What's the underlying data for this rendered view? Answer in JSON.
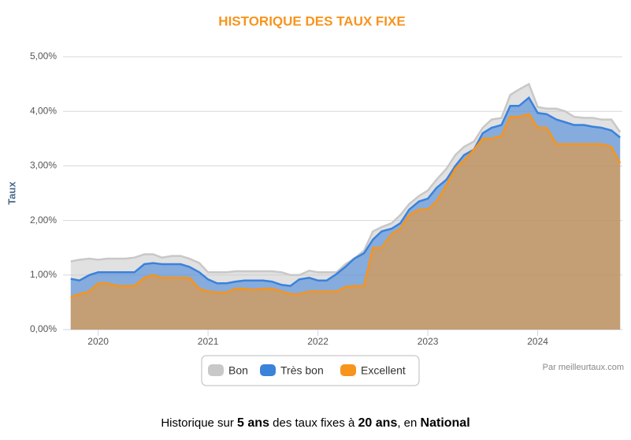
{
  "chart_data": {
    "type": "area",
    "title": "HISTORIQUE DES TAUX FIXE",
    "y_label": "Taux",
    "credits": "Par meilleurtaux.com",
    "x": [
      2019.75,
      2019.83,
      2019.92,
      2020.0,
      2020.08,
      2020.17,
      2020.25,
      2020.33,
      2020.42,
      2020.5,
      2020.58,
      2020.67,
      2020.75,
      2020.83,
      2020.92,
      2021.0,
      2021.08,
      2021.17,
      2021.25,
      2021.33,
      2021.42,
      2021.5,
      2021.58,
      2021.67,
      2021.75,
      2021.83,
      2021.92,
      2022.0,
      2022.08,
      2022.17,
      2022.25,
      2022.33,
      2022.42,
      2022.5,
      2022.58,
      2022.67,
      2022.75,
      2022.83,
      2022.92,
      2023.0,
      2023.08,
      2023.17,
      2023.25,
      2023.33,
      2023.42,
      2023.5,
      2023.58,
      2023.67,
      2023.75,
      2023.83,
      2023.92,
      2024.0,
      2024.08,
      2024.17,
      2024.25,
      2024.33,
      2024.42,
      2024.5,
      2024.58,
      2024.67,
      2024.75
    ],
    "series": [
      {
        "name": "Bon",
        "color": "#c8c8c8",
        "values": [
          1.25,
          1.28,
          1.3,
          1.28,
          1.3,
          1.3,
          1.3,
          1.32,
          1.38,
          1.38,
          1.32,
          1.35,
          1.35,
          1.3,
          1.22,
          1.05,
          1.05,
          1.05,
          1.07,
          1.07,
          1.07,
          1.07,
          1.07,
          1.05,
          1.0,
          1.0,
          1.08,
          1.05,
          1.05,
          1.05,
          1.2,
          1.3,
          1.45,
          1.8,
          1.88,
          1.95,
          2.1,
          2.3,
          2.45,
          2.55,
          2.75,
          2.95,
          3.2,
          3.35,
          3.45,
          3.7,
          3.85,
          3.88,
          4.3,
          4.4,
          4.5,
          4.08,
          4.05,
          4.05,
          4.0,
          3.9,
          3.88,
          3.88,
          3.85,
          3.85,
          3.62
        ]
      },
      {
        "name": "Très bon",
        "color": "#3b82db",
        "values": [
          0.93,
          0.9,
          1.0,
          1.05,
          1.05,
          1.05,
          1.05,
          1.05,
          1.2,
          1.22,
          1.2,
          1.2,
          1.2,
          1.15,
          1.05,
          0.92,
          0.85,
          0.85,
          0.88,
          0.9,
          0.9,
          0.9,
          0.88,
          0.82,
          0.8,
          0.92,
          0.95,
          0.9,
          0.9,
          1.02,
          1.15,
          1.3,
          1.4,
          1.65,
          1.8,
          1.85,
          1.95,
          2.2,
          2.35,
          2.4,
          2.6,
          2.75,
          3.0,
          3.2,
          3.3,
          3.6,
          3.7,
          3.75,
          4.1,
          4.1,
          4.25,
          3.97,
          3.95,
          3.85,
          3.8,
          3.75,
          3.75,
          3.72,
          3.7,
          3.65,
          3.52
        ]
      },
      {
        "name": "Excellent",
        "color": "#f7941d",
        "values": [
          0.6,
          0.65,
          0.7,
          0.85,
          0.85,
          0.8,
          0.8,
          0.8,
          0.95,
          1.0,
          0.95,
          0.95,
          0.95,
          0.95,
          0.75,
          0.7,
          0.68,
          0.68,
          0.75,
          0.75,
          0.73,
          0.75,
          0.75,
          0.7,
          0.65,
          0.65,
          0.7,
          0.7,
          0.7,
          0.7,
          0.78,
          0.8,
          0.8,
          1.5,
          1.5,
          1.75,
          1.85,
          2.1,
          2.2,
          2.2,
          2.35,
          2.65,
          2.95,
          3.1,
          3.3,
          3.5,
          3.5,
          3.55,
          3.9,
          3.9,
          3.95,
          3.7,
          3.7,
          3.4,
          3.4,
          3.4,
          3.4,
          3.4,
          3.4,
          3.35,
          3.05
        ]
      }
    ],
    "xlim": [
      2019.68,
      2024.77
    ],
    "xticks": [
      2020,
      2021,
      2022,
      2023,
      2024
    ],
    "ylim": [
      0,
      5
    ],
    "yticks": [
      {
        "value": 0,
        "label": "0,00%"
      },
      {
        "value": 1,
        "label": "1,00%"
      },
      {
        "value": 2,
        "label": "2,00%"
      },
      {
        "value": 3,
        "label": "3,00%"
      },
      {
        "value": 4,
        "label": "4,00%"
      },
      {
        "value": 5,
        "label": "5,00%"
      }
    ],
    "grid": true,
    "legend": "bottom"
  },
  "footer": [
    "Historique sur ",
    "5 ans",
    " des taux fixes à ",
    "20 ans",
    ", en ",
    "National"
  ]
}
